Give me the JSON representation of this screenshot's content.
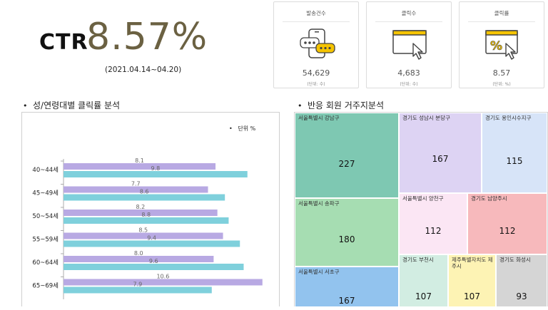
{
  "header": {
    "ctr_label": "CTR",
    "ctr_value": "8.57%",
    "period": "(2021.04.14~04.20)"
  },
  "cards": [
    {
      "title": "발송건수",
      "value": "54,629",
      "unit": "(단위: 수)",
      "icon": "phone-chat-icon"
    },
    {
      "title": "클릭수",
      "value": "4,683",
      "unit": "(단위: 수)",
      "icon": "click-window-icon"
    },
    {
      "title": "클릭률",
      "value": "8.57",
      "unit": "(단위: %)",
      "icon": "percent-click-icon"
    }
  ],
  "sections": {
    "left_title": "성/연령대별 클릭률 분석",
    "right_title": "반응 회원 거주지분석",
    "bullet": "•"
  },
  "chart_data": [
    {
      "type": "bar",
      "orientation": "horizontal",
      "unit_note": "단위 %",
      "unit_bullet": "•",
      "categories": [
        "40~44세",
        "45~49세",
        "50~54세",
        "55~59세",
        "60~64세",
        "65~69세"
      ],
      "series": [
        {
          "values": [
            8.1,
            7.7,
            8.2,
            8.5,
            8.0,
            10.6
          ],
          "labels": [
            "8.1",
            "7.7",
            "8.2",
            "8.5",
            "8.0",
            "10.6"
          ],
          "color": "#b8a9e3"
        },
        {
          "values": [
            9.8,
            8.6,
            8.8,
            9.4,
            9.6,
            7.9
          ],
          "labels": [
            "9.8",
            "8.6",
            "8.8",
            "9.4",
            "9.6",
            "7.9"
          ],
          "color": "#7fd0dc"
        }
      ],
      "xlim": [
        0,
        11
      ]
    },
    {
      "type": "treemap",
      "items": [
        {
          "name": "서울특별시 강남구",
          "value": 227,
          "label": "227",
          "color": "#7ec8b2"
        },
        {
          "name": "서울특별시 송파구",
          "value": 180,
          "label": "180",
          "color": "#a6ddb2"
        },
        {
          "name": "서울특별시 서초구",
          "value": 167,
          "label": "167",
          "color": "#92c3ee"
        },
        {
          "name": "경기도 성남시 분당구",
          "value": 167,
          "label": "167",
          "color": "#ddd3f3"
        },
        {
          "name": "경기도 용인시수지구",
          "value": 115,
          "label": "115",
          "color": "#d7e4f8"
        },
        {
          "name": "서울특별시 양천구",
          "value": 112,
          "label": "112",
          "color": "#fbe6f4"
        },
        {
          "name": "경기도 남양주시",
          "value": 112,
          "label": "112",
          "color": "#f7b9bc"
        },
        {
          "name": "경기도 부천시",
          "value": 107,
          "label": "107",
          "color": "#d2ede2"
        },
        {
          "name": "제주특별자치도 제주시",
          "value": 107,
          "label": "107",
          "color": "#fdf3b4"
        },
        {
          "name": "경기도 화성시",
          "value": 93,
          "label": "93",
          "color": "#d5d5d5"
        }
      ]
    }
  ]
}
